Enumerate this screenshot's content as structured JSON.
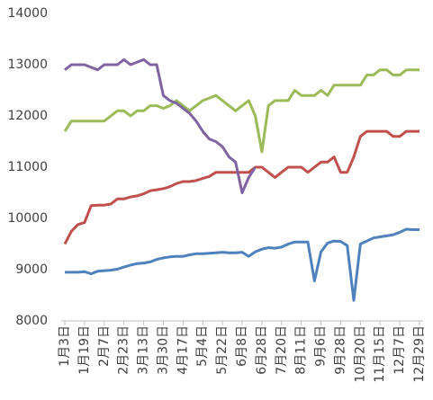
{
  "chart_data": {
    "type": "line",
    "categories": [
      "1月3日",
      null,
      null,
      "1月19日",
      null,
      null,
      "2月7日",
      null,
      null,
      "2月23日",
      null,
      null,
      "3月13日",
      null,
      null,
      "3月30日",
      null,
      null,
      "4月17日",
      null,
      null,
      "5月4日",
      null,
      null,
      "5月22日",
      null,
      null,
      "6月8日",
      null,
      null,
      "6月28日",
      null,
      null,
      "7月20日",
      null,
      null,
      "8月11日",
      null,
      null,
      "9月6日",
      null,
      null,
      "9月28日",
      null,
      null,
      "10月20日",
      null,
      null,
      "11月15日",
      null,
      null,
      "12月7日",
      null,
      null,
      "12月29日"
    ],
    "series": [
      {
        "color": "#4f81bd",
        "values": [
          8950,
          8950,
          8950,
          8960,
          8920,
          8970,
          8980,
          8990,
          9010,
          9050,
          9090,
          9120,
          9130,
          9150,
          9200,
          9230,
          9250,
          9260,
          9260,
          9290,
          9310,
          9310,
          9320,
          9330,
          9340,
          9330,
          9330,
          9340,
          9260,
          9350,
          9400,
          9430,
          9420,
          9440,
          9500,
          9540,
          9540,
          9540,
          8780,
          9350,
          9520,
          9560,
          9550,
          9470,
          8400,
          9500,
          9560,
          9620,
          9640,
          9660,
          9680,
          9730,
          9790,
          9780,
          9780
        ]
      },
      {
        "color": "#c0504d",
        "values": [
          9500,
          9750,
          9880,
          9920,
          10250,
          10260,
          10260,
          10280,
          10380,
          10380,
          10420,
          10440,
          10480,
          10540,
          10560,
          10580,
          10620,
          10680,
          10720,
          10720,
          10740,
          10780,
          10820,
          10900,
          10900,
          10900,
          10900,
          10900,
          10900,
          11000,
          11000,
          10900,
          10800,
          10900,
          11000,
          11000,
          11000,
          10900,
          11000,
          11100,
          11100,
          11200,
          10900,
          10900,
          11200,
          11600,
          11700,
          11700,
          11700,
          11700,
          11600,
          11600,
          11700,
          11700,
          11700
        ]
      },
      {
        "color": "#9bbb59",
        "values": [
          11700,
          11900,
          11900,
          11900,
          11900,
          11900,
          11900,
          12000,
          12100,
          12100,
          12000,
          12100,
          12100,
          12200,
          12200,
          12150,
          12200,
          12300,
          12200,
          12100,
          12200,
          12300,
          12350,
          12400,
          12300,
          12200,
          12100,
          12200,
          12300,
          12000,
          11300,
          12200,
          12300,
          12300,
          12300,
          12500,
          12400,
          12400,
          12400,
          12500,
          12400,
          12600,
          12600,
          12600,
          12600,
          12600,
          12800,
          12800,
          12900,
          12900,
          12800,
          12800,
          12900,
          12900,
          12900
        ]
      },
      {
        "color": "#8064a2",
        "values": [
          12900,
          13000,
          13000,
          13000,
          12950,
          12900,
          13000,
          13000,
          13000,
          13100,
          13000,
          13050,
          13100,
          13000,
          13000,
          12400,
          12300,
          12250,
          12150,
          12050,
          11900,
          11700,
          11550,
          11500,
          11400,
          11200,
          11100,
          10500,
          10800,
          11000,
          null,
          null,
          null,
          null,
          null,
          null,
          null,
          null,
          null,
          null,
          null,
          null,
          null,
          null,
          null,
          null,
          null,
          null,
          null,
          null,
          null,
          null,
          null,
          null,
          null
        ]
      }
    ],
    "ylim": [
      8000,
      14000
    ],
    "yticks": [
      8000,
      9000,
      10000,
      11000,
      12000,
      13000,
      14000
    ],
    "grid": false
  }
}
